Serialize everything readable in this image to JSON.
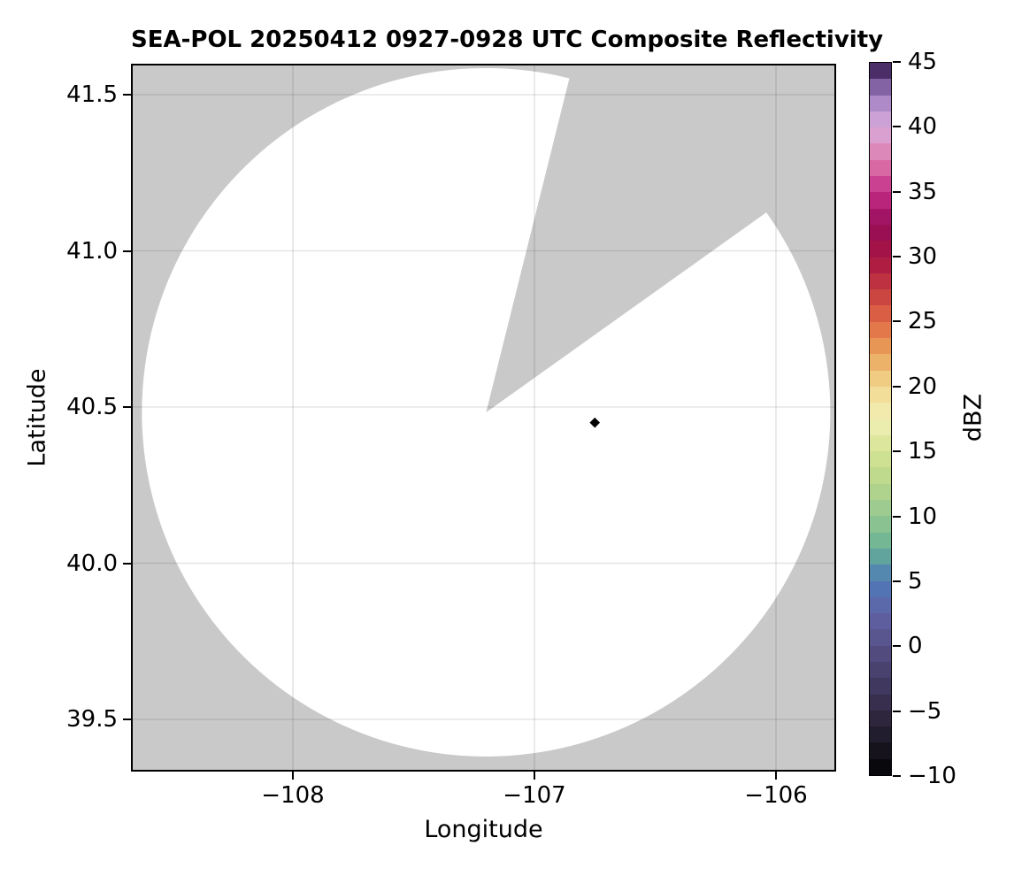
{
  "figure": {
    "title": "SEA-POL 20250412 0927-0928 UTC Composite Reflectivity",
    "xlabel": "Longitude",
    "ylabel": "Latitude",
    "colorbar_label": "dBZ",
    "background_color": "#ffffff",
    "no_data_color": "#c9c9c9",
    "grid_color": "rgba(0,0,0,0.10)"
  },
  "chart_data": {
    "type": "heatmap",
    "subtype": "radar-ppi-composite-reflectivity",
    "title": "SEA-POL 20250412 0927-0928 UTC Composite Reflectivity",
    "xlabel": "Longitude",
    "ylabel": "Latitude",
    "colorbar_label": "dBZ",
    "xlim": [
      -108.67,
      -105.75
    ],
    "ylim": [
      39.33,
      41.6
    ],
    "grid": true,
    "x_ticks": [
      {
        "value": -108,
        "label": "−108"
      },
      {
        "value": -107,
        "label": "−107"
      },
      {
        "value": -106,
        "label": "−106"
      }
    ],
    "y_ticks": [
      {
        "value": 41.5,
        "label": "41.5"
      },
      {
        "value": 41.0,
        "label": "41.0"
      },
      {
        "value": 40.5,
        "label": "40.5"
      },
      {
        "value": 40.0,
        "label": "40.0"
      },
      {
        "value": 39.5,
        "label": "39.5"
      }
    ],
    "colorbar": {
      "range": [
        -10,
        45
      ],
      "ticks": [
        {
          "value": 45,
          "label": "45"
        },
        {
          "value": 40,
          "label": "40"
        },
        {
          "value": 35,
          "label": "35"
        },
        {
          "value": 30,
          "label": "30"
        },
        {
          "value": 25,
          "label": "25"
        },
        {
          "value": 20,
          "label": "20"
        },
        {
          "value": 15,
          "label": "15"
        },
        {
          "value": 10,
          "label": "10"
        },
        {
          "value": 5,
          "label": "5"
        },
        {
          "value": 0,
          "label": "0"
        },
        {
          "value": -5,
          "label": "−5"
        },
        {
          "value": -10,
          "label": "−10"
        }
      ],
      "n_bands": 44,
      "colormap_stops": [
        {
          "value": -10,
          "color": "#030303"
        },
        {
          "value": -7.5,
          "color": "#1c1826"
        },
        {
          "value": -5,
          "color": "#322a44"
        },
        {
          "value": -2.5,
          "color": "#453c66"
        },
        {
          "value": 0,
          "color": "#565086"
        },
        {
          "value": 2.5,
          "color": "#6063a6"
        },
        {
          "value": 5,
          "color": "#4d7ab8"
        },
        {
          "value": 7.5,
          "color": "#68b295"
        },
        {
          "value": 10,
          "color": "#96c791"
        },
        {
          "value": 12.5,
          "color": "#b7d58a"
        },
        {
          "value": 15,
          "color": "#d5e494"
        },
        {
          "value": 17.5,
          "color": "#f2f0b6"
        },
        {
          "value": 20,
          "color": "#f2d88e"
        },
        {
          "value": 22.5,
          "color": "#eba55c"
        },
        {
          "value": 25,
          "color": "#e06a45"
        },
        {
          "value": 27.5,
          "color": "#c43a40"
        },
        {
          "value": 30,
          "color": "#a81543"
        },
        {
          "value": 32.5,
          "color": "#950d58"
        },
        {
          "value": 35,
          "color": "#c52d87"
        },
        {
          "value": 37.5,
          "color": "#dd7bad"
        },
        {
          "value": 40,
          "color": "#d9addc"
        },
        {
          "value": 42.5,
          "color": "#a07ec2"
        },
        {
          "value": 45,
          "color": "#2e1348"
        }
      ]
    },
    "radar_coverage": {
      "center_lon": -107.2,
      "center_lat": 40.483,
      "radius_deg_lon": 1.425,
      "missing_sector_azimuth_deg": [
        14,
        54.5
      ],
      "coverage_fill": "#ffffff"
    },
    "echoes": [
      {
        "lon": -106.75,
        "lat": 40.45,
        "approx_dbz": -10,
        "color": "#000000",
        "shape": "diamond"
      }
    ]
  }
}
